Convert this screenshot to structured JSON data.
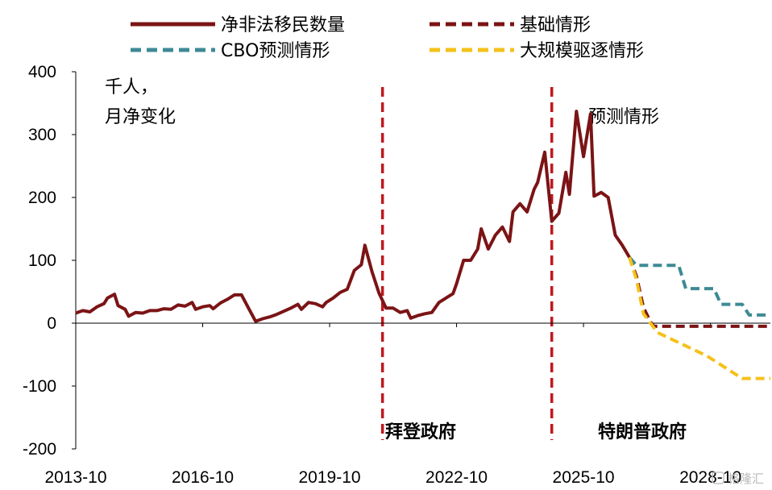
{
  "chart_data": {
    "type": "line",
    "unit_label": [
      "千人，",
      "月净变化"
    ],
    "ylim": [
      -200,
      400
    ],
    "yticks": [
      "400",
      "300",
      "200",
      "100",
      "0",
      "-100",
      "-200"
    ],
    "ytick_values": [
      400,
      300,
      200,
      100,
      0,
      -100,
      -200
    ],
    "xlim": [
      "2013-10",
      "2030-03"
    ],
    "xticks": [
      "2013-10",
      "2016-10",
      "2019-10",
      "2022-10",
      "2025-10",
      "2028-10"
    ],
    "grid": false,
    "legend_position": "top",
    "colors": {
      "actual": "#7B1416",
      "baseline": "#7B1416",
      "cbo": "#3E8A94",
      "deportation": "#F5C11A",
      "divider": "#C0181E",
      "axis": "#000000"
    },
    "annotations": {
      "forecast": "预测情形",
      "biden": "拜登政府",
      "trump": "特朗普政府"
    },
    "dividers": [
      "2021-01",
      "2025-01"
    ],
    "series": [
      {
        "name": "净非法移民数量",
        "style": "solid",
        "data": [
          [
            "2013-10",
            16
          ],
          [
            "2013-12",
            20
          ],
          [
            "2014-02",
            18
          ],
          [
            "2014-04",
            26
          ],
          [
            "2014-06",
            31
          ],
          [
            "2014-07",
            40
          ],
          [
            "2014-09",
            46
          ],
          [
            "2014-10",
            28
          ],
          [
            "2014-12",
            22
          ],
          [
            "2015-01",
            11
          ],
          [
            "2015-03",
            17
          ],
          [
            "2015-05",
            16
          ],
          [
            "2015-07",
            20
          ],
          [
            "2015-09",
            20
          ],
          [
            "2015-11",
            23
          ],
          [
            "2016-01",
            22
          ],
          [
            "2016-03",
            29
          ],
          [
            "2016-05",
            27
          ],
          [
            "2016-07",
            33
          ],
          [
            "2016-08",
            22
          ],
          [
            "2016-10",
            26
          ],
          [
            "2016-12",
            28
          ],
          [
            "2017-01",
            23
          ],
          [
            "2017-03",
            32
          ],
          [
            "2017-05",
            38
          ],
          [
            "2017-07",
            45
          ],
          [
            "2017-09",
            45
          ],
          [
            "2017-11",
            24
          ],
          [
            "2018-01",
            3
          ],
          [
            "2018-03",
            7
          ],
          [
            "2018-05",
            10
          ],
          [
            "2018-07",
            14
          ],
          [
            "2018-09",
            19
          ],
          [
            "2018-11",
            24
          ],
          [
            "2019-01",
            30
          ],
          [
            "2019-02",
            22
          ],
          [
            "2019-04",
            33
          ],
          [
            "2019-06",
            31
          ],
          [
            "2019-08",
            26
          ],
          [
            "2019-09",
            33
          ],
          [
            "2019-11",
            40
          ],
          [
            "2020-01",
            49
          ],
          [
            "2020-03",
            54
          ],
          [
            "2020-05",
            84
          ],
          [
            "2020-07",
            93
          ],
          [
            "2020-08",
            124
          ],
          [
            "2020-10",
            82
          ],
          [
            "2020-12",
            48
          ],
          [
            "2021-02",
            24
          ],
          [
            "2021-04",
            24
          ],
          [
            "2021-06",
            17
          ],
          [
            "2021-08",
            20
          ],
          [
            "2021-09",
            8
          ],
          [
            "2021-11",
            12
          ],
          [
            "2022-01",
            15
          ],
          [
            "2022-03",
            17
          ],
          [
            "2022-05",
            33
          ],
          [
            "2022-07",
            40
          ],
          [
            "2022-09",
            47
          ],
          [
            "2022-10",
            63
          ],
          [
            "2022-12",
            100
          ],
          [
            "2023-02",
            100
          ],
          [
            "2023-04",
            118
          ],
          [
            "2023-05",
            150
          ],
          [
            "2023-07",
            118
          ],
          [
            "2023-09",
            140
          ],
          [
            "2023-11",
            153
          ],
          [
            "2024-01",
            130
          ],
          [
            "2024-02",
            177
          ],
          [
            "2024-04",
            190
          ],
          [
            "2024-06",
            177
          ],
          [
            "2024-08",
            213
          ],
          [
            "2024-09",
            224
          ],
          [
            "2024-11",
            272
          ],
          [
            "2025-01",
            162
          ],
          [
            "2025-03",
            175
          ],
          [
            "2025-05",
            240
          ],
          [
            "2025-06",
            205
          ],
          [
            "2025-08",
            337
          ],
          [
            "2025-10",
            265
          ],
          [
            "2025-12",
            333
          ],
          [
            "2026-01",
            202
          ],
          [
            "2026-03",
            208
          ],
          [
            "2026-05",
            200
          ],
          [
            "2026-07",
            140
          ],
          [
            "2026-09",
            124
          ],
          [
            "2026-11",
            105
          ]
        ]
      },
      {
        "name": "基础情形",
        "style": "dashed",
        "data": [
          [
            "2026-11",
            105
          ],
          [
            "2027-01",
            75
          ],
          [
            "2027-03",
            25
          ],
          [
            "2027-05",
            2
          ],
          [
            "2027-06",
            -5
          ],
          [
            "2027-08",
            -5
          ],
          [
            "2030-03",
            -5
          ]
        ]
      },
      {
        "name": "CBO预测情形",
        "style": "dashed",
        "data": [
          [
            "2026-11",
            105
          ],
          [
            "2027-01",
            92
          ],
          [
            "2028-01",
            92
          ],
          [
            "2028-03",
            55
          ],
          [
            "2028-11",
            55
          ],
          [
            "2029-01",
            30
          ],
          [
            "2029-07",
            30
          ],
          [
            "2029-09",
            13
          ],
          [
            "2030-03",
            13
          ]
        ]
      },
      {
        "name": "大规模驱逐情形",
        "style": "dashed",
        "data": [
          [
            "2026-11",
            105
          ],
          [
            "2027-01",
            70
          ],
          [
            "2027-03",
            15
          ],
          [
            "2027-07",
            -15
          ],
          [
            "2028-09",
            -52
          ],
          [
            "2029-07",
            -88
          ],
          [
            "2030-03",
            -88
          ]
        ]
      }
    ]
  },
  "watermark": "格隆汇"
}
